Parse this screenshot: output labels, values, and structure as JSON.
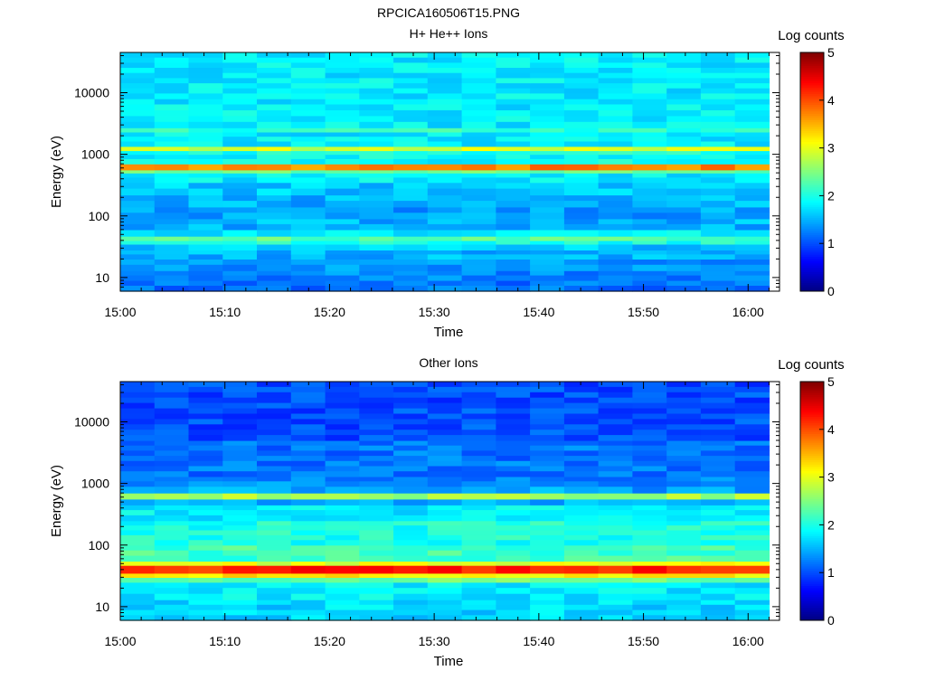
{
  "figure_title": "RPCICA160506T15.PNG",
  "chart_data": [
    {
      "type": "heatmap",
      "title": "H+ He++ Ions",
      "xlabel": "Time",
      "ylabel": "Energy (eV)",
      "x_start": "15:00",
      "x_end": "16:02",
      "xticks": [
        "15:00",
        "15:10",
        "15:20",
        "15:30",
        "15:40",
        "15:50",
        "16:00"
      ],
      "yscale": "log",
      "ylim": [
        6,
        45000
      ],
      "yticks": [
        "10",
        "100",
        "1000",
        "10000"
      ],
      "colorbar": {
        "label": "Log counts",
        "range": [
          0,
          5
        ],
        "ticks": [
          "0",
          "1",
          "2",
          "3",
          "4",
          "5"
        ]
      },
      "time_columns": 19,
      "bands": [
        {
          "energy_range": [
            6,
            9
          ],
          "log_counts": 1.2
        },
        {
          "energy_range": [
            9,
            13
          ],
          "log_counts": 1.3
        },
        {
          "energy_range": [
            13,
            20
          ],
          "log_counts": 1.4
        },
        {
          "energy_range": [
            20,
            28
          ],
          "log_counts": 1.5
        },
        {
          "energy_range": [
            28,
            35
          ],
          "log_counts": 1.6
        },
        {
          "energy_range": [
            35,
            40
          ],
          "log_counts": 2.0
        },
        {
          "energy_range": [
            40,
            47
          ],
          "log_counts": 2.3
        },
        {
          "energy_range": [
            47,
            60
          ],
          "log_counts": 1.8
        },
        {
          "energy_range": [
            60,
            90
          ],
          "log_counts": 1.5
        },
        {
          "energy_range": [
            90,
            140
          ],
          "log_counts": 1.4
        },
        {
          "energy_range": [
            140,
            220
          ],
          "log_counts": 1.5
        },
        {
          "energy_range": [
            220,
            350
          ],
          "log_counts": 1.6
        },
        {
          "energy_range": [
            350,
            500
          ],
          "log_counts": 1.8
        },
        {
          "energy_range": [
            500,
            560
          ],
          "log_counts": 2.4
        },
        {
          "energy_range": [
            560,
            700
          ],
          "log_counts": 3.7
        },
        {
          "energy_range": [
            700,
            1000
          ],
          "log_counts": 1.9
        },
        {
          "energy_range": [
            1000,
            1150
          ],
          "log_counts": 2.0
        },
        {
          "energy_range": [
            1150,
            1350
          ],
          "log_counts": 2.9
        },
        {
          "energy_range": [
            1350,
            2300
          ],
          "log_counts": 1.8
        },
        {
          "energy_range": [
            2300,
            2700
          ],
          "log_counts": 2.1
        },
        {
          "energy_range": [
            2700,
            8000
          ],
          "log_counts": 1.8
        },
        {
          "energy_range": [
            8000,
            45000
          ],
          "log_counts": 1.8
        }
      ]
    },
    {
      "type": "heatmap",
      "title": "Other Ions",
      "xlabel": "Time",
      "ylabel": "Energy (eV)",
      "x_start": "15:00",
      "x_end": "16:02",
      "xticks": [
        "15:00",
        "15:10",
        "15:20",
        "15:30",
        "15:40",
        "15:50",
        "16:00"
      ],
      "yscale": "log",
      "ylim": [
        6,
        45000
      ],
      "yticks": [
        "10",
        "100",
        "1000",
        "10000"
      ],
      "colorbar": {
        "label": "Log counts",
        "range": [
          0,
          5
        ],
        "ticks": [
          "0",
          "1",
          "2",
          "3",
          "4",
          "5"
        ]
      },
      "time_columns": 19,
      "bands": [
        {
          "energy_range": [
            6,
            13
          ],
          "log_counts": 1.7
        },
        {
          "energy_range": [
            13,
            25
          ],
          "log_counts": 1.8
        },
        {
          "energy_range": [
            25,
            30
          ],
          "log_counts": 2.4
        },
        {
          "energy_range": [
            30,
            35
          ],
          "log_counts": 3.2
        },
        {
          "energy_range": [
            35,
            47
          ],
          "log_counts": 4.2
        },
        {
          "energy_range": [
            47,
            55
          ],
          "log_counts": 3.0
        },
        {
          "energy_range": [
            55,
            100
          ],
          "log_counts": 2.2
        },
        {
          "energy_range": [
            100,
            250
          ],
          "log_counts": 2.0
        },
        {
          "energy_range": [
            250,
            450
          ],
          "log_counts": 1.8
        },
        {
          "energy_range": [
            450,
            560
          ],
          "log_counts": 1.5
        },
        {
          "energy_range": [
            560,
            700
          ],
          "log_counts": 2.7
        },
        {
          "energy_range": [
            700,
            900
          ],
          "log_counts": 1.4
        },
        {
          "energy_range": [
            900,
            1300
          ],
          "log_counts": 1.3
        },
        {
          "energy_range": [
            1300,
            5000
          ],
          "log_counts": 1.2
        },
        {
          "energy_range": [
            5000,
            45000
          ],
          "log_counts": 1.0
        }
      ]
    }
  ]
}
